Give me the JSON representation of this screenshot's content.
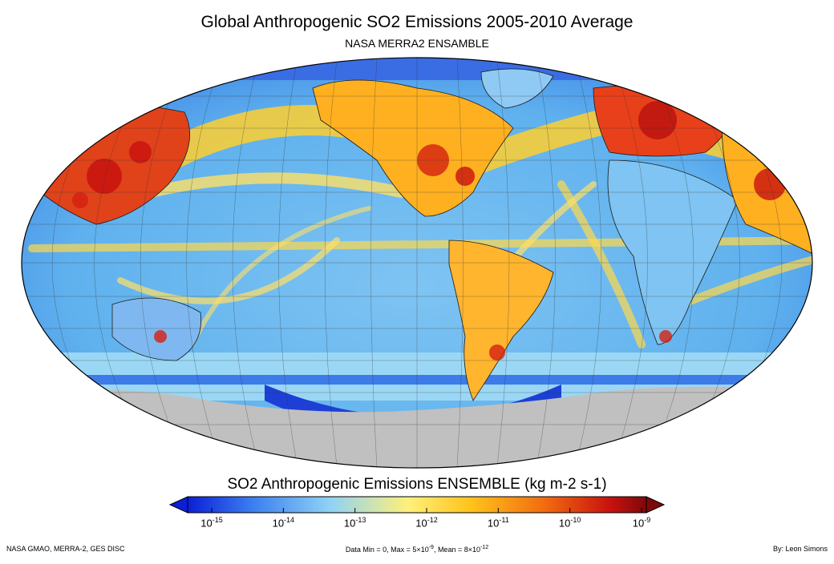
{
  "title": "Global Anthropogenic SO2 Emissions 2005-2010 Average",
  "subtitle": "NASA MERRA2 ENSAMBLE",
  "map": {
    "projection": "Robinson",
    "center_longitude": "180"
  },
  "colorbar": {
    "title": "SO2 Anthropogenic Emissions  ENSEMBLE  (kg m-2 s-1)",
    "tick_base": "10",
    "ticks": [
      "-15",
      "-14",
      "-13",
      "-12",
      "-11",
      "-10",
      "-9"
    ],
    "colors": [
      "#0b1fd6",
      "#3a7ef0",
      "#8fd2f5",
      "#fff07a",
      "#ffc21a",
      "#f26a10",
      "#c8120f",
      "#7d0a0a"
    ]
  },
  "footer": {
    "left": "NASA GMAO, MERRA-2, GES DISC",
    "stats_prefix": "Data Min = 0, Max = 5×10",
    "stats_max_exp": "-9",
    "stats_middle": ", Mean = 8×10",
    "stats_mean_exp": "-12",
    "right": "By: Leon Simons"
  }
}
